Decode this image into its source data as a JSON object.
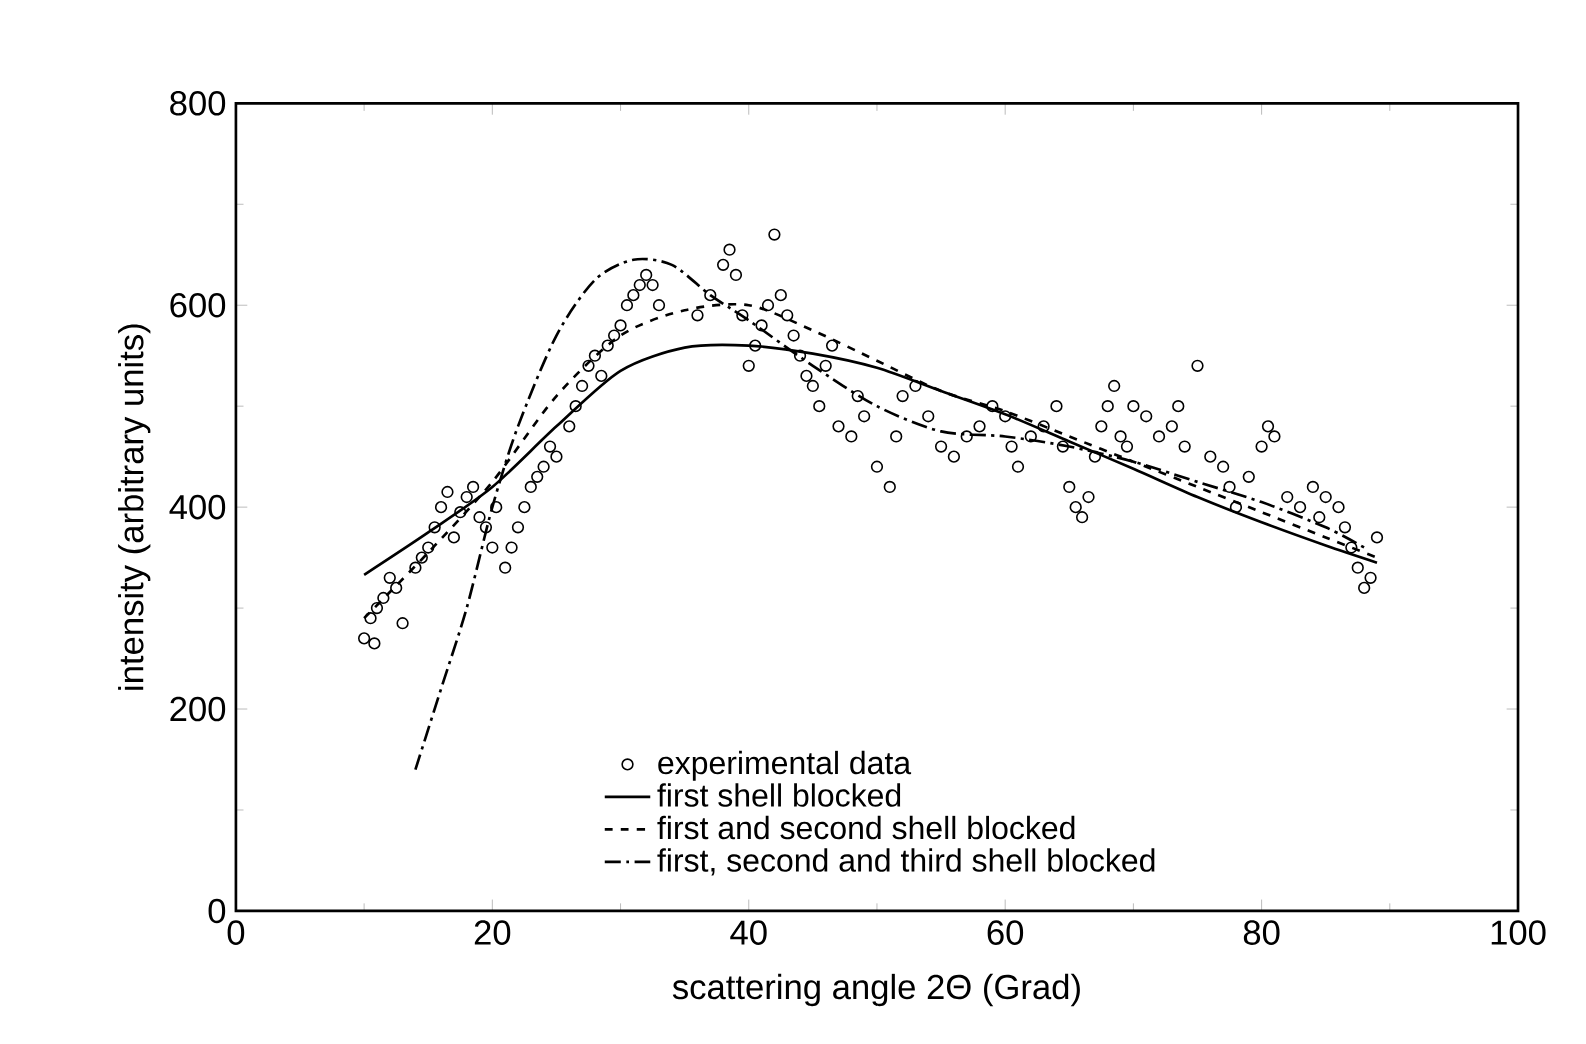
{
  "chart_data": {
    "type": "line",
    "xlabel": "scattering angle 2Θ (Grad)",
    "ylabel": "intensity (arbitrary units)",
    "xlim": [
      0,
      100
    ],
    "ylim": [
      0,
      800
    ],
    "xticks": [
      0,
      20,
      40,
      60,
      80,
      100
    ],
    "yticks": [
      0,
      200,
      400,
      600,
      800
    ],
    "grid": false,
    "legend": "bottom",
    "series": [
      {
        "name": "experimental data",
        "type": "scatter",
        "marker": "circle",
        "color": "#000000",
        "x": [
          10,
          10.5,
          11,
          11.5,
          12,
          12.5,
          13,
          10.8,
          14,
          14.5,
          15,
          15.5,
          16,
          16.5,
          17,
          17.5,
          18,
          18.5,
          19,
          19.5,
          20,
          20.3,
          21,
          21.5,
          22,
          22.5,
          23,
          23.5,
          24,
          24.5,
          25,
          26,
          26.5,
          27,
          27.5,
          28,
          28.5,
          29,
          29.5,
          30,
          30.5,
          31,
          31.5,
          32,
          32.5,
          33,
          36,
          37,
          38,
          38.5,
          39,
          39.5,
          40,
          40.5,
          41,
          41.5,
          42,
          42.5,
          43,
          43.5,
          44,
          44.5,
          45,
          45.5,
          46,
          46.5,
          47,
          48,
          48.5,
          49,
          50,
          51,
          51.5,
          52,
          53,
          54,
          55,
          56,
          57,
          58,
          59,
          60,
          60.5,
          61,
          62,
          63,
          64,
          64.5,
          65,
          65.5,
          66,
          66.5,
          67,
          67.5,
          68,
          68.5,
          69,
          69.5,
          70,
          71,
          72,
          73,
          73.5,
          74,
          75,
          76,
          77,
          77.5,
          78,
          79,
          80,
          80.5,
          81,
          82,
          83,
          84,
          84.5,
          85,
          86,
          86.5,
          87,
          87.5,
          88,
          88.5,
          89
        ],
        "values": [
          270,
          290,
          300,
          310,
          330,
          320,
          285,
          265,
          340,
          350,
          360,
          380,
          400,
          415,
          370,
          395,
          410,
          420,
          390,
          380,
          360,
          400,
          340,
          360,
          380,
          400,
          420,
          430,
          440,
          460,
          450,
          480,
          500,
          520,
          540,
          550,
          530,
          560,
          570,
          580,
          600,
          610,
          620,
          630,
          620,
          600,
          590,
          610,
          640,
          655,
          630,
          590,
          540,
          560,
          580,
          600,
          670,
          610,
          590,
          570,
          550,
          530,
          520,
          500,
          540,
          560,
          480,
          470,
          510,
          490,
          440,
          420,
          470,
          510,
          520,
          490,
          460,
          450,
          470,
          480,
          500,
          490,
          460,
          440,
          470,
          480,
          500,
          460,
          420,
          400,
          390,
          410,
          450,
          480,
          500,
          520,
          470,
          460,
          500,
          490,
          470,
          480,
          500,
          460,
          540,
          450,
          440,
          420,
          400,
          430,
          460,
          480,
          470,
          410,
          400,
          420,
          390,
          410,
          400,
          380,
          360,
          340,
          320,
          330,
          370
        ]
      },
      {
        "name": "first shell blocked",
        "line_style": "solid",
        "color": "#000000",
        "x": [
          10,
          15,
          20,
          25,
          30,
          35,
          40,
          45,
          50,
          55,
          60,
          65,
          70,
          75,
          80,
          85,
          89
        ],
        "values": [
          333,
          375,
          420,
          480,
          535,
          558,
          560,
          552,
          538,
          515,
          492,
          465,
          438,
          410,
          385,
          362,
          345
        ]
      },
      {
        "name": "first and second shell blocked",
        "line_style": "dashed",
        "color": "#000000",
        "x": [
          10,
          15,
          20,
          25,
          30,
          35,
          40,
          45,
          50,
          55,
          60,
          65,
          70,
          75,
          80,
          85,
          89
        ],
        "values": [
          290,
          355,
          425,
          510,
          570,
          595,
          600,
          575,
          545,
          515,
          495,
          470,
          445,
          420,
          395,
          370,
          350
        ]
      },
      {
        "name": "first, second and third shell blocked",
        "line_style": "dashdot",
        "color": "#000000",
        "x": [
          14,
          16,
          18,
          20,
          22,
          25,
          28,
          31,
          34,
          37,
          40,
          45,
          50,
          55,
          60,
          65,
          70,
          75,
          80,
          85,
          88
        ],
        "values": [
          140,
          220,
          300,
          400,
          480,
          570,
          625,
          645,
          640,
          610,
          585,
          540,
          500,
          475,
          470,
          460,
          445,
          425,
          405,
          380,
          360
        ]
      }
    ]
  }
}
